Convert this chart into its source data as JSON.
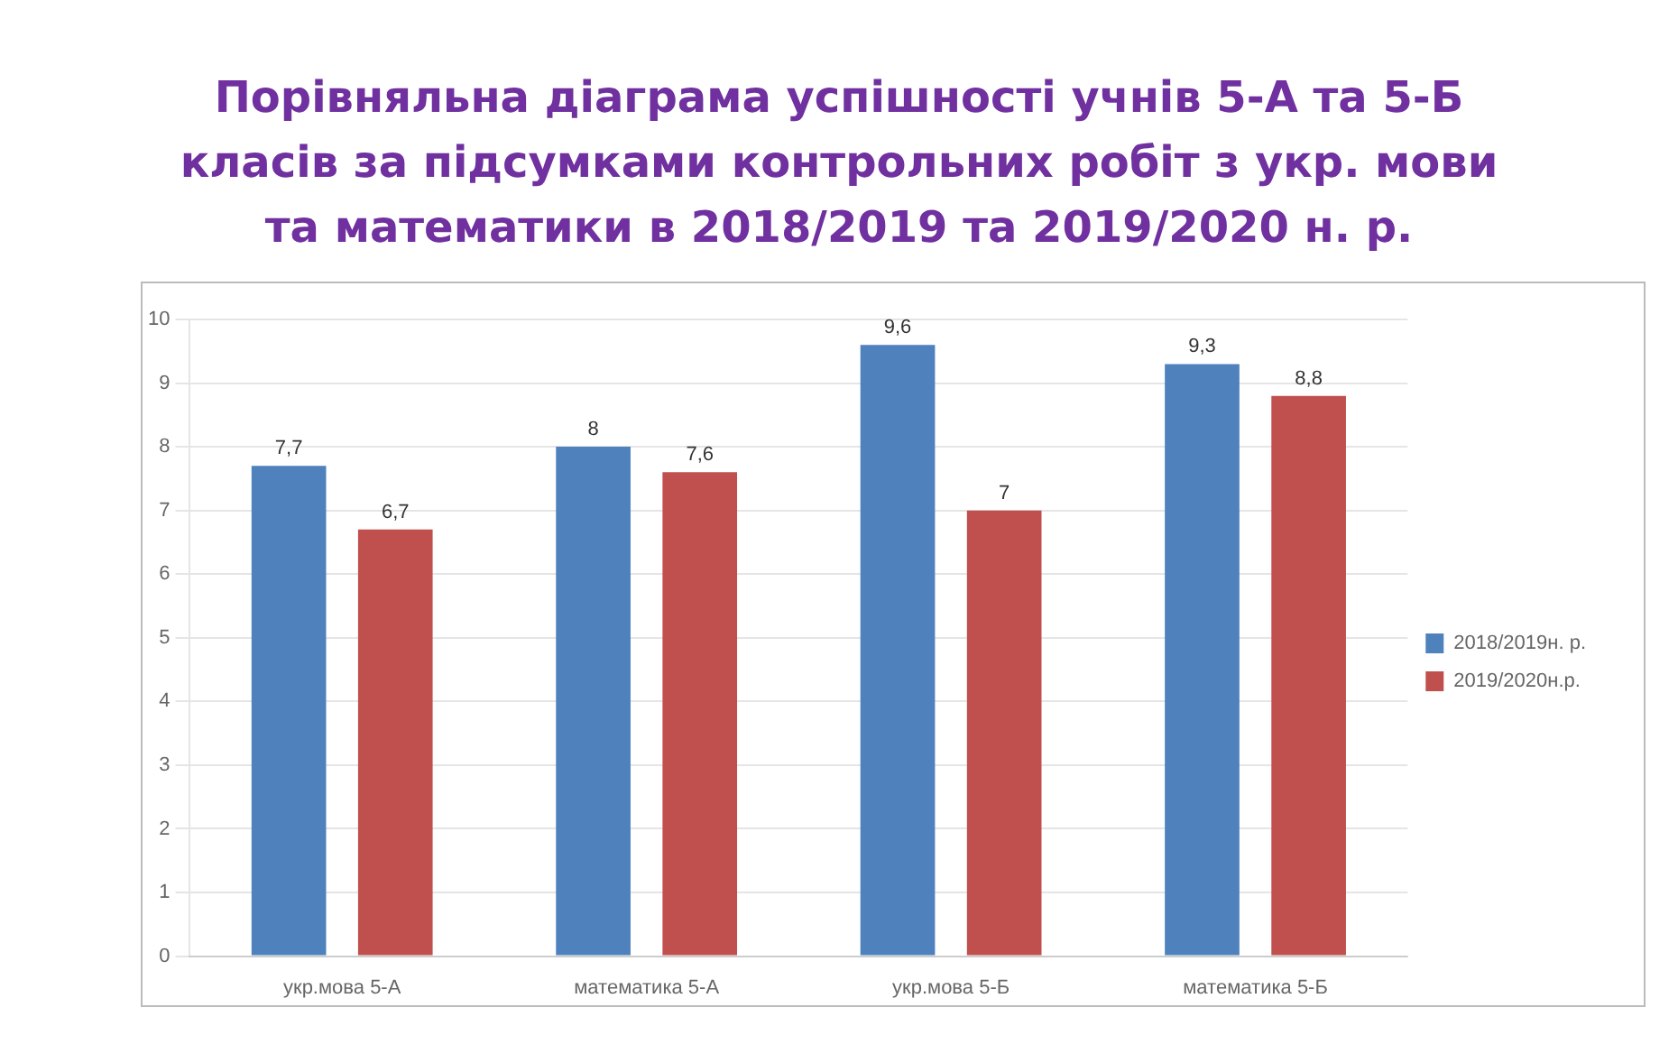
{
  "chart_data": {
    "type": "bar",
    "title": "Порівняльна діаграма успішності учнів 5-А та 5-Б класів за підсумками контрольних робіт з укр. мови та математики в 2018/2019 та 2019/2020 н. р.",
    "categories": [
      "укр.мова 5-А",
      "математика 5-А",
      "укр.мова 5-Б",
      "математика 5-Б"
    ],
    "series": [
      {
        "name": "2018/2019н. р.",
        "color": "#4f81bd",
        "values": [
          7.7,
          8,
          9.6,
          9.3
        ],
        "value_labels": [
          "7,7",
          "8",
          "9,6",
          "9,3"
        ]
      },
      {
        "name": "2019/2020н.р.",
        "color": "#c0504d",
        "values": [
          6.7,
          7.6,
          7,
          8.8
        ],
        "value_labels": [
          "6,7",
          "7,6",
          "7",
          "8,8"
        ]
      }
    ],
    "ylim": [
      0,
      10
    ],
    "yticks": [
      0,
      1,
      2,
      3,
      4,
      5,
      6,
      7,
      8,
      9,
      10
    ],
    "grid": "y",
    "legend": "right"
  }
}
